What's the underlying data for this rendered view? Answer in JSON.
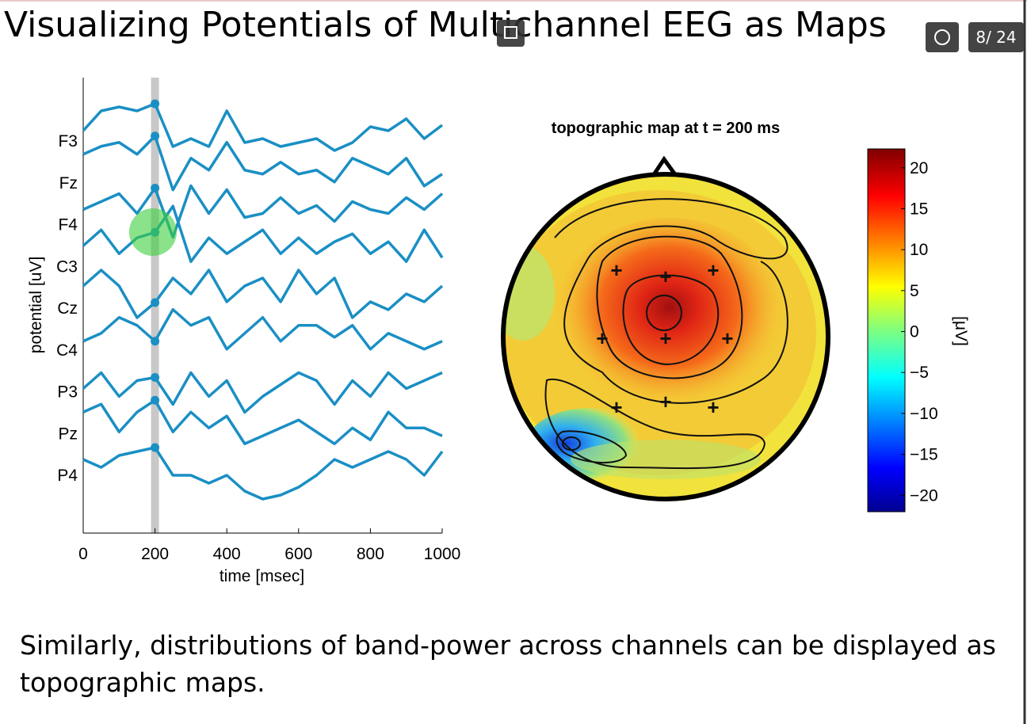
{
  "header": {
    "title": "Visualizing Potentials of Multichannel EEG as Maps",
    "slide_counter": "8/ 24"
  },
  "chart_data": [
    {
      "type": "line",
      "color": "#1a8fc4",
      "x": [
        0,
        50,
        100,
        150,
        200,
        250,
        300,
        350,
        400,
        450,
        500,
        550,
        600,
        650,
        700,
        750,
        800,
        850,
        900,
        950,
        1000
      ],
      "xlim": [
        0,
        1000
      ],
      "xticks": [
        0,
        200,
        400,
        600,
        800,
        1000
      ],
      "xlabel": "time  [msec]",
      "ylabel": "potential  [uV]",
      "highlight_time": 200,
      "series": [
        {
          "name": "F3",
          "values": [
            12,
            37,
            42,
            37,
            46,
            -8,
            2,
            -8,
            37,
            -3,
            2,
            -8,
            -3,
            2,
            -13,
            -3,
            17,
            12,
            27,
            2,
            19
          ]
        },
        {
          "name": "Fz",
          "values": [
            35,
            45,
            50,
            35,
            58,
            -10,
            30,
            15,
            50,
            15,
            10,
            25,
            10,
            15,
            0,
            30,
            20,
            10,
            30,
            -5,
            10
          ]
        },
        {
          "name": "F4",
          "values": [
            18,
            28,
            38,
            13,
            45,
            -17,
            48,
            13,
            43,
            8,
            13,
            33,
            13,
            23,
            3,
            28,
            18,
            13,
            33,
            18,
            38
          ]
        },
        {
          "name": "C3",
          "values": [
            25,
            45,
            15,
            35,
            42,
            75,
            5,
            35,
            15,
            30,
            45,
            15,
            35,
            15,
            30,
            40,
            15,
            30,
            5,
            45,
            10
          ]
        },
        {
          "name": "Cz",
          "values": [
            27,
            47,
            27,
            -13,
            6,
            37,
            17,
            47,
            7,
            27,
            37,
            7,
            47,
            17,
            37,
            -13,
            7,
            -3,
            17,
            7,
            27
          ]
        },
        {
          "name": "C4",
          "values": [
            10,
            20,
            40,
            30,
            10,
            50,
            30,
            40,
            0,
            20,
            40,
            10,
            30,
            30,
            15,
            30,
            0,
            20,
            10,
            0,
            10
          ]
        },
        {
          "name": "P3",
          "values": [
            3,
            23,
            -7,
            13,
            17,
            -17,
            23,
            -7,
            13,
            -27,
            -7,
            8,
            23,
            13,
            -17,
            13,
            -7,
            23,
            3,
            13,
            23
          ]
        },
        {
          "name": "Pz",
          "values": [
            26,
            36,
            1,
            26,
            41,
            1,
            26,
            6,
            21,
            -14,
            -4,
            6,
            16,
            1,
            -14,
            6,
            -9,
            26,
            6,
            6,
            -4
          ]
        },
        {
          "name": "P4",
          "values": [
            19,
            9,
            24,
            29,
            34,
            -1,
            -1,
            -11,
            -1,
            -21,
            -31,
            -26,
            -16,
            -1,
            19,
            9,
            19,
            29,
            19,
            -1,
            29
          ]
        }
      ]
    },
    {
      "type": "topomap",
      "title": "topographic map at  t = 200 ms",
      "ylim": [
        -22,
        22.3
      ],
      "yticks": [
        {
          "value": -20,
          "label": "−20"
        },
        {
          "value": -15,
          "label": "−15"
        },
        {
          "value": -10,
          "label": "−10"
        },
        {
          "value": -5,
          "label": "−5"
        },
        0,
        5,
        10,
        15,
        20
      ],
      "colorbar_label": "[μV]"
    }
  ],
  "body": {
    "lines": [
      "Similarly, distributions of band-power across channels can be displayed as",
      "topographic maps."
    ]
  }
}
